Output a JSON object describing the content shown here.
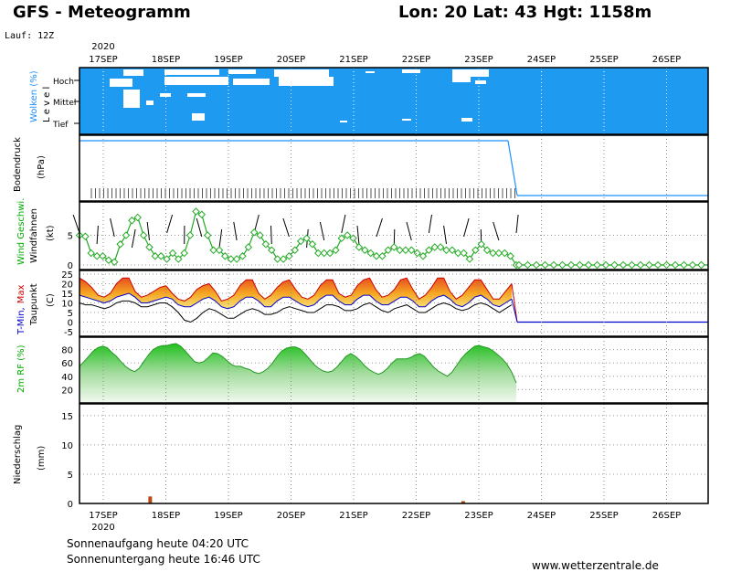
{
  "header": {
    "title": "GFS - Meteogramm",
    "location": "Lon: 20 Lat: 43 Hgt: 1158m",
    "run": "Lauf: 12Z",
    "year": "2020"
  },
  "panels": {
    "clouds": {
      "label": "Wolken (%)",
      "sublabel": "L e v e l",
      "levels": [
        "Hoch",
        "Mittel",
        "Tief"
      ],
      "label_color": "#1e90ff"
    },
    "pressure": {
      "label": "Bodendruck",
      "unit": "(hPa)"
    },
    "wind": {
      "label": "Wind Geschwi.",
      "sublabel": "Windfahnen",
      "unit": "(kt)",
      "label_color": "#00aa00"
    },
    "temp": {
      "label_min": "T-Min,",
      "label_max": "Max",
      "sublabel": "Taupunkt",
      "unit": "(C)",
      "min_color": "#0000cc",
      "max_color": "#cc0000"
    },
    "rh": {
      "label": "2m RF (%)",
      "label_color": "#00aa00"
    },
    "precip": {
      "label": "Niederschlag",
      "unit": "(mm)"
    }
  },
  "footer": {
    "sunrise": "Sonnenaufgang heute 04:20 UTC",
    "sunset": "Sonnenuntergang heute 16:46 UTC",
    "site": "www.wetterzentrale.de"
  },
  "chart_data": {
    "type": "line",
    "x_dates": [
      "17SEP",
      "18SEP",
      "19SEP",
      "20SEP",
      "21SEP",
      "22SEP",
      "23SEP",
      "24SEP",
      "25SEP",
      "26SEP"
    ],
    "x_first_day_year": "2020",
    "wind_kt": {
      "ylim": [
        0,
        10
      ],
      "yticks": [
        0,
        5
      ],
      "values": [
        5.0,
        4.8,
        2.0,
        1.5,
        1.5,
        0.8,
        0.5,
        3.5,
        5.0,
        7.5,
        8.0,
        5.0,
        3.0,
        1.5,
        1.5,
        1.0,
        2.0,
        1.0,
        2.0,
        5.0,
        9.0,
        8.5,
        5.0,
        2.5,
        2.5,
        1.5,
        1.0,
        1.0,
        1.5,
        3.0,
        5.5,
        5.0,
        3.5,
        2.5,
        1.0,
        1.0,
        1.5,
        2.5,
        4.0,
        4.5,
        3.5,
        2.0,
        2.0,
        2.0,
        2.5,
        4.5,
        5.0,
        4.5,
        3.0,
        2.5,
        2.0,
        1.5,
        1.5,
        2.5,
        3.0,
        2.5,
        2.5,
        2.5,
        2.0,
        1.5,
        2.5,
        3.0,
        3.0,
        2.5,
        2.5,
        2.0,
        2.0,
        1.0,
        2.5,
        3.5,
        2.5,
        2.0,
        2.0,
        2.0,
        1.5,
        0.0
      ]
    },
    "temp_c": {
      "ylim": [
        -5,
        25
      ],
      "yticks": [
        -5,
        0,
        5,
        10,
        15,
        20,
        25
      ],
      "t_max": [
        23,
        21,
        18,
        14,
        13,
        15,
        20,
        23,
        23,
        16,
        13,
        14,
        16,
        18,
        19,
        15,
        12,
        11,
        13,
        17,
        19,
        20,
        16,
        11,
        12,
        14,
        19,
        22,
        22,
        15,
        12,
        14,
        18,
        21,
        22,
        17,
        13,
        12,
        14,
        19,
        22,
        22,
        15,
        13,
        14,
        19,
        22,
        23,
        17,
        13,
        14,
        17,
        22,
        23,
        17,
        12,
        14,
        18,
        23,
        23,
        16,
        12,
        14,
        18,
        22,
        22,
        17,
        12,
        12,
        16,
        20
      ],
      "t_min": [
        14,
        13,
        12,
        11,
        10,
        11,
        13,
        14,
        15,
        13,
        10,
        10,
        11,
        12,
        13,
        12,
        9,
        8,
        8,
        10,
        12,
        13,
        11,
        8,
        7,
        8,
        11,
        13,
        13,
        11,
        8,
        8,
        11,
        13,
        13,
        11,
        9,
        8,
        9,
        12,
        14,
        14,
        11,
        9,
        9,
        12,
        14,
        14,
        11,
        9,
        9,
        11,
        13,
        13,
        11,
        8,
        8,
        11,
        13,
        14,
        12,
        9,
        8,
        10,
        13,
        14,
        12,
        9,
        8,
        10,
        12
      ],
      "dewpoint": [
        10,
        9,
        9,
        8,
        7,
        8,
        10,
        11,
        11,
        10,
        8,
        8,
        9,
        10,
        10,
        8,
        5,
        1,
        0,
        2,
        5,
        7,
        6,
        4,
        2,
        2,
        4,
        6,
        7,
        6,
        4,
        4,
        5,
        7,
        8,
        7,
        6,
        5,
        5,
        7,
        9,
        9,
        8,
        6,
        6,
        7,
        9,
        10,
        8,
        6,
        5,
        7,
        8,
        9,
        7,
        5,
        5,
        7,
        9,
        10,
        9,
        7,
        6,
        7,
        9,
        10,
        9,
        7,
        5,
        7,
        9
      ]
    },
    "rh_pct": {
      "ylim": [
        0,
        100
      ],
      "yticks": [
        20,
        40,
        60,
        80
      ],
      "values": [
        55,
        62,
        70,
        78,
        83,
        85,
        83,
        76,
        70,
        62,
        55,
        50,
        47,
        52,
        62,
        72,
        80,
        84,
        86,
        86,
        88,
        89,
        85,
        78,
        70,
        62,
        60,
        62,
        68,
        75,
        74,
        70,
        64,
        58,
        55,
        55,
        52,
        50,
        46,
        44,
        47,
        52,
        60,
        70,
        78,
        82,
        84,
        84,
        81,
        74,
        66,
        58,
        52,
        48,
        46,
        48,
        54,
        62,
        70,
        74,
        70,
        64,
        56,
        50,
        46,
        43,
        46,
        52,
        60,
        66,
        66,
        66,
        68,
        72,
        74,
        70,
        62,
        54,
        48,
        44,
        40,
        46,
        56,
        66,
        74,
        80,
        85,
        86,
        84,
        82,
        78,
        72,
        66,
        58,
        46,
        30
      ]
    },
    "precip_mm": {
      "ylim": [
        0,
        17
      ],
      "yticks": [
        0,
        5,
        10,
        15
      ],
      "bars": [
        {
          "date": "17SEP 18Z",
          "value": 1.2
        },
        {
          "date": "22SEP 18Z",
          "value": 0.4
        }
      ]
    }
  }
}
